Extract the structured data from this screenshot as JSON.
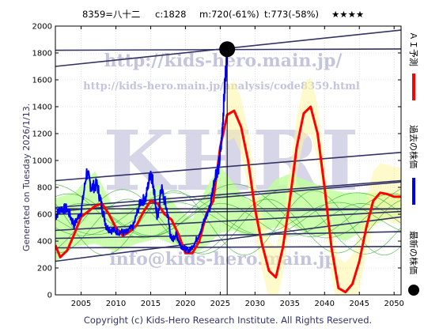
{
  "header": {
    "code_name": "8359=八十二",
    "current": "c:1828",
    "min": "m:720(-61%)",
    "target": "t:773(-58%)",
    "stars": "★★★★"
  },
  "generated": "Generated on Tuesday 2026/1/13.",
  "copyright": "Copyright (c) Kids-Hero Research Institute. All Rights Reserved.",
  "watermarks": {
    "url": "http://kids-hero.main.jp/",
    "analysis": "http://kids-hero.main.jp/analysis/code8359.html",
    "big": "KHRI",
    "mail": "info@kids-hero.main.jp"
  },
  "legend": [
    {
      "label": "ＡＩ予測",
      "color": "#ff0000"
    },
    {
      "label": "過去の株価",
      "color": "#0000ee"
    },
    {
      "label": "最新の株価",
      "color": "#000000"
    }
  ],
  "colors": {
    "actual": "#0000ee",
    "ai": "#ff0000",
    "band": "#bfff99",
    "forecast_lines": "#33aa33",
    "cone": "#fff5a0",
    "trend": "#333366",
    "watermark": "#b8b8d8"
  },
  "chart_data": {
    "type": "line",
    "xlim": [
      2001.3,
      2051
    ],
    "ylim": [
      0,
      2000
    ],
    "x_ticks": [
      2005,
      2010,
      2015,
      2020,
      2025,
      2030,
      2035,
      2040,
      2045,
      2050
    ],
    "y_ticks": [
      0,
      200,
      400,
      600,
      800,
      1000,
      1200,
      1400,
      1600,
      1800,
      2000
    ],
    "latest": {
      "x": 2026.0,
      "y": 1828
    },
    "series": [
      {
        "name": "過去の株価",
        "x": [
          2001.3,
          2002,
          2003,
          2004,
          2005,
          2005.8,
          2006.5,
          2007.3,
          2008,
          2008.7,
          2009.5,
          2010.5,
          2011.5,
          2012.5,
          2013.5,
          2014.3,
          2015,
          2015.4,
          2016,
          2016.5,
          2017.3,
          2018,
          2018.7,
          2019.3,
          2020,
          2020.6,
          2021.5,
          2022.5,
          2023.5,
          2024.3,
          2024.8,
          2025.2,
          2025.6,
          2026.0
        ],
        "y": [
          580,
          640,
          640,
          520,
          620,
          910,
          800,
          820,
          650,
          500,
          480,
          470,
          460,
          510,
          690,
          720,
          920,
          820,
          550,
          800,
          640,
          400,
          450,
          370,
          340,
          330,
          400,
          520,
          650,
          900,
          950,
          1150,
          1500,
          1828
        ]
      },
      {
        "name": "ＡＩ予測",
        "x": [
          2001.3,
          2002,
          2003,
          2004,
          2005,
          2006,
          2007,
          2008,
          2009,
          2010,
          2011,
          2012,
          2013,
          2014,
          2015,
          2016,
          2017,
          2018,
          2019,
          2020,
          2021,
          2022,
          2023,
          2024,
          2025,
          2026,
          2027,
          2028,
          2029,
          2030,
          2031,
          2032,
          2033,
          2034,
          2035,
          2036,
          2037,
          2038,
          2039,
          2040,
          2041,
          2042,
          2043,
          2044,
          2045,
          2046,
          2047,
          2048,
          2049,
          2050,
          2051
        ],
        "y": [
          370,
          280,
          330,
          450,
          580,
          620,
          660,
          680,
          600,
          500,
          440,
          470,
          520,
          620,
          700,
          680,
          600,
          560,
          450,
          310,
          310,
          400,
          600,
          700,
          1100,
          1340,
          1370,
          1250,
          1000,
          640,
          380,
          180,
          130,
          350,
          700,
          1100,
          1350,
          1400,
          1200,
          800,
          350,
          50,
          20,
          80,
          250,
          500,
          700,
          760,
          750,
          730,
          730
        ]
      }
    ],
    "trend_lines": [
      {
        "x": [
          2001.3,
          2051
        ],
        "y": [
          1700,
          1970
        ]
      },
      {
        "x": [
          2001.3,
          2051
        ],
        "y": [
          1820,
          1830
        ]
      },
      {
        "x": [
          2001.3,
          2051
        ],
        "y": [
          850,
          1060
        ]
      },
      {
        "x": [
          2001.3,
          2051
        ],
        "y": [
          650,
          850
        ]
      },
      {
        "x": [
          2001.3,
          2051
        ],
        "y": [
          620,
          840
        ]
      },
      {
        "x": [
          2001.3,
          2051
        ],
        "y": [
          600,
          640
        ]
      },
      {
        "x": [
          2001.3,
          2051
        ],
        "y": [
          480,
          620
        ]
      },
      {
        "x": [
          2001.3,
          2051
        ],
        "y": [
          420,
          470
        ]
      },
      {
        "x": [
          2001.3,
          2051
        ],
        "y": [
          350,
          360
        ]
      },
      {
        "x": [
          2001.3,
          2051
        ],
        "y": [
          250,
          580
        ]
      },
      {
        "x": [
          2001.3,
          2051
        ],
        "y": [
          640,
          640
        ]
      }
    ],
    "forecast_band": {
      "x": [
        2001.3,
        2004,
        2007,
        2010,
        2013,
        2016,
        2019,
        2021,
        2023,
        2025,
        2027,
        2029,
        2031,
        2033,
        2035,
        2037,
        2039,
        2041,
        2043,
        2045,
        2047,
        2049,
        2051
      ],
      "upper": [
        720,
        760,
        920,
        620,
        680,
        820,
        640,
        560,
        800,
        960,
        820,
        700,
        740,
        860,
        900,
        860,
        820,
        780,
        760,
        760,
        760,
        760,
        760
      ],
      "lower": [
        240,
        360,
        380,
        320,
        380,
        420,
        360,
        300,
        360,
        460,
        480,
        420,
        480,
        500,
        520,
        460,
        440,
        440,
        400,
        460,
        520,
        560,
        580
      ]
    }
  }
}
